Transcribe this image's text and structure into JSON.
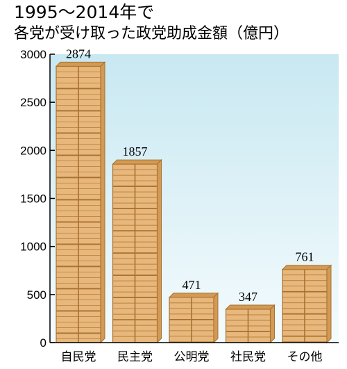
{
  "chart_data": {
    "type": "bar",
    "title": "1995～2014年で",
    "subtitle": "各党が受け取った政党助成金額（億円）",
    "xlabel": "",
    "ylabel": "",
    "ylim": [
      0,
      3000
    ],
    "yticks": [
      "0",
      "500",
      "1000",
      "1500",
      "2000",
      "2500",
      "3000"
    ],
    "categories": [
      "自民党",
      "民主党",
      "公明党",
      "社民党",
      "その他"
    ],
    "values": [
      2874,
      1857,
      471,
      347,
      761
    ],
    "value_labels": [
      "2874",
      "1857",
      "471",
      "347",
      "761"
    ],
    "grid": false,
    "colors": {
      "background_top": "#c8e8f2",
      "background_bottom": "#f4fbfd",
      "bar_face": "#e8b77c",
      "bar_line": "#a8712f",
      "bar_dark": "#d29a55",
      "axis": "#000000"
    }
  }
}
